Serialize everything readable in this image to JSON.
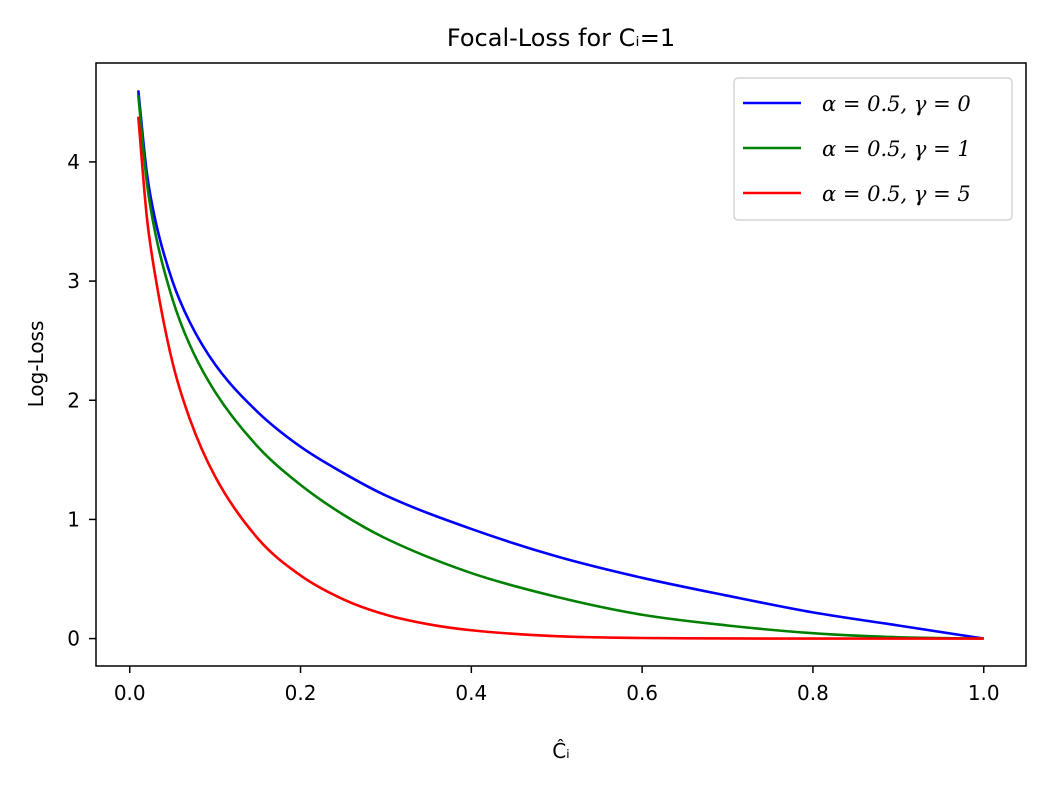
{
  "chart_data": {
    "type": "line",
    "title": "Focal-Loss for Cᵢ=1",
    "xlabel": "Ĉᵢ",
    "ylabel": "Log-Loss",
    "xlim": [
      -0.0395,
      1.0495
    ],
    "ylim": [
      -0.23,
      4.83
    ],
    "xticks": [
      0.0,
      0.2,
      0.4,
      0.6,
      0.8,
      1.0
    ],
    "xtick_labels": [
      "0.0",
      "0.2",
      "0.4",
      "0.6",
      "0.8",
      "1.0"
    ],
    "yticks": [
      0,
      1,
      2,
      3,
      4
    ],
    "ytick_labels": [
      "0",
      "1",
      "2",
      "3",
      "4"
    ],
    "grid": false,
    "legend_position": "top-right",
    "series": [
      {
        "name": "α = 0.5, γ = 0",
        "color": "#0000ff",
        "x": [
          0.01,
          0.02,
          0.03,
          0.05,
          0.07,
          0.1,
          0.15,
          0.2,
          0.25,
          0.3,
          0.4,
          0.5,
          0.6,
          0.7,
          0.8,
          0.9,
          1.0
        ],
        "y": [
          4.6,
          3.91,
          3.51,
          3.0,
          2.66,
          2.3,
          1.9,
          1.61,
          1.39,
          1.2,
          0.92,
          0.69,
          0.51,
          0.36,
          0.22,
          0.11,
          0.0
        ]
      },
      {
        "name": "α = 0.5, γ = 1",
        "color": "#008000",
        "x": [
          0.01,
          0.02,
          0.03,
          0.05,
          0.07,
          0.1,
          0.15,
          0.2,
          0.25,
          0.3,
          0.4,
          0.5,
          0.6,
          0.7,
          0.8,
          0.9,
          1.0
        ],
        "y": [
          4.56,
          3.83,
          3.4,
          2.85,
          2.47,
          2.07,
          1.61,
          1.29,
          1.04,
          0.84,
          0.55,
          0.35,
          0.2,
          0.11,
          0.045,
          0.011,
          0.0
        ]
      },
      {
        "name": "α = 0.5, γ = 5",
        "color": "#ff0000",
        "x": [
          0.01,
          0.02,
          0.03,
          0.05,
          0.07,
          0.1,
          0.15,
          0.2,
          0.25,
          0.3,
          0.35,
          0.4,
          0.5,
          0.6,
          0.7,
          0.8,
          0.9,
          1.0
        ],
        "y": [
          4.38,
          3.54,
          3.04,
          2.32,
          1.85,
          1.36,
          0.84,
          0.53,
          0.33,
          0.2,
          0.12,
          0.07,
          0.02,
          0.005,
          0.001,
          0.0,
          0.0,
          0.0
        ]
      }
    ]
  }
}
